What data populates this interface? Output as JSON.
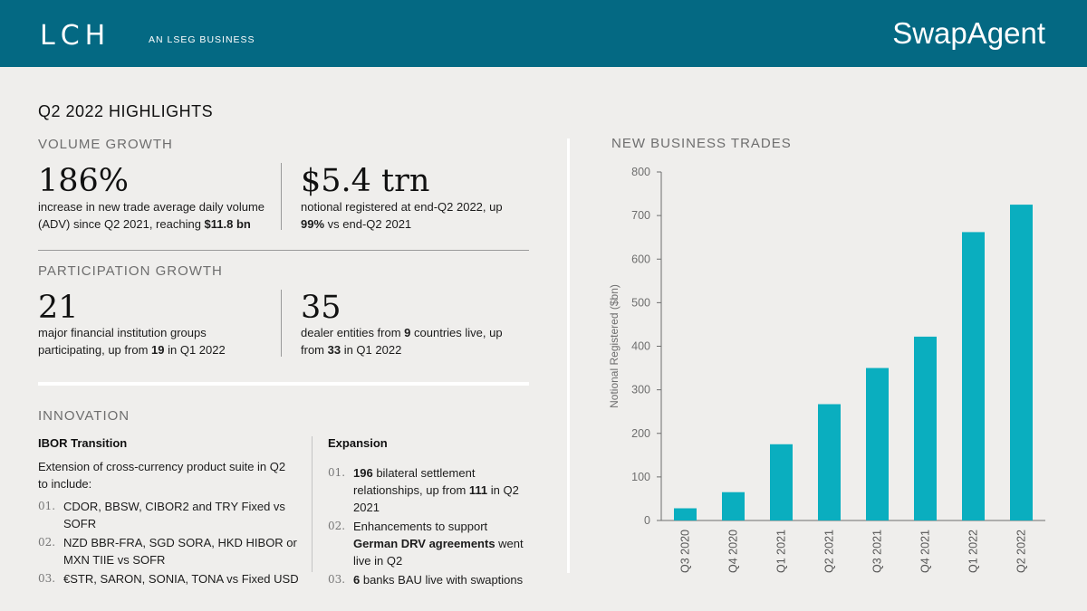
{
  "header": {
    "logo": "LCH",
    "tagline": "AN LSEG BUSINESS",
    "product": "SwapAgent"
  },
  "page_title": "Q2 2022 HIGHLIGHTS",
  "volume": {
    "heading": "VOLUME GROWTH",
    "left": {
      "value": "186%",
      "line1": "increase in new trade average daily volume",
      "line2_pre": "(ADV) since Q2 2021, reaching ",
      "line2_bold": "$11.8 bn"
    },
    "right": {
      "value": "$5.4 trn",
      "line1": "notional registered at end-Q2 2022, up",
      "line2_bold": "99%",
      "line2_post": " vs end-Q2 2021"
    }
  },
  "participation": {
    "heading": "PARTICIPATION GROWTH",
    "left": {
      "value": "21",
      "line1": "major financial institution groups",
      "line2_pre": "participating, up from ",
      "line2_bold": "19",
      "line2_post": " in Q1 2022"
    },
    "right": {
      "value": "35",
      "line1_pre": "dealer entities from ",
      "line1_bold": "9",
      "line1_post": " countries live, up",
      "line2_pre": "from ",
      "line2_bold": "33",
      "line2_post": " in Q1 2022"
    }
  },
  "innovation": {
    "heading": "INNOVATION",
    "ibor": {
      "title": "IBOR Transition",
      "intro1": "Extension of cross-currency product suite in Q2",
      "intro2": "to include:",
      "items": [
        {
          "num": "01.",
          "line1": "CDOR, BBSW, CIBOR2 and TRY Fixed vs SOFR",
          "line2": ""
        },
        {
          "num": "02.",
          "line1": "NZD BBR-FRA, SGD SORA, HKD HIBOR or",
          "line2": "MXN TIIE vs SOFR"
        },
        {
          "num": "03.",
          "line1": "€STR, SARON, SONIA, TONA vs Fixed USD",
          "line2": ""
        }
      ]
    },
    "expansion": {
      "title": "Expansion",
      "items": [
        {
          "num": "01.",
          "bold1": "196",
          "rest1": " bilateral settlement",
          "line2_pre": "relationships, up from ",
          "line2_bold": "111",
          "line2_post": " in Q2 2021"
        },
        {
          "num": "02.",
          "rest1": "Enhancements to support",
          "line2_bold": "German DRV agreements",
          "line2_post": " went",
          "line3": "live in Q2"
        },
        {
          "num": "03.",
          "bold1": "6",
          "rest1": " banks BAU live with swaptions"
        }
      ]
    }
  },
  "chart_heading": "NEW BUSINESS TRADES",
  "chart_data": {
    "type": "bar",
    "title": "",
    "xlabel": "",
    "ylabel": "Notional Registered ($bn)",
    "categories": [
      "Q3 2020",
      "Q4 2020",
      "Q1 2021",
      "Q2 2021",
      "Q3 2021",
      "Q4 2021",
      "Q1 2022",
      "Q2 2022"
    ],
    "values": [
      28,
      65,
      175,
      267,
      350,
      422,
      662,
      725
    ],
    "ylim": [
      0,
      800
    ],
    "yticks": [
      0,
      100,
      200,
      300,
      400,
      500,
      600,
      700,
      800
    ],
    "bar_color": "#0aaebf",
    "grid": false
  },
  "colors": {
    "header_bg": "#046983",
    "page_bg": "#efeeec",
    "bar": "#0aaebf"
  }
}
